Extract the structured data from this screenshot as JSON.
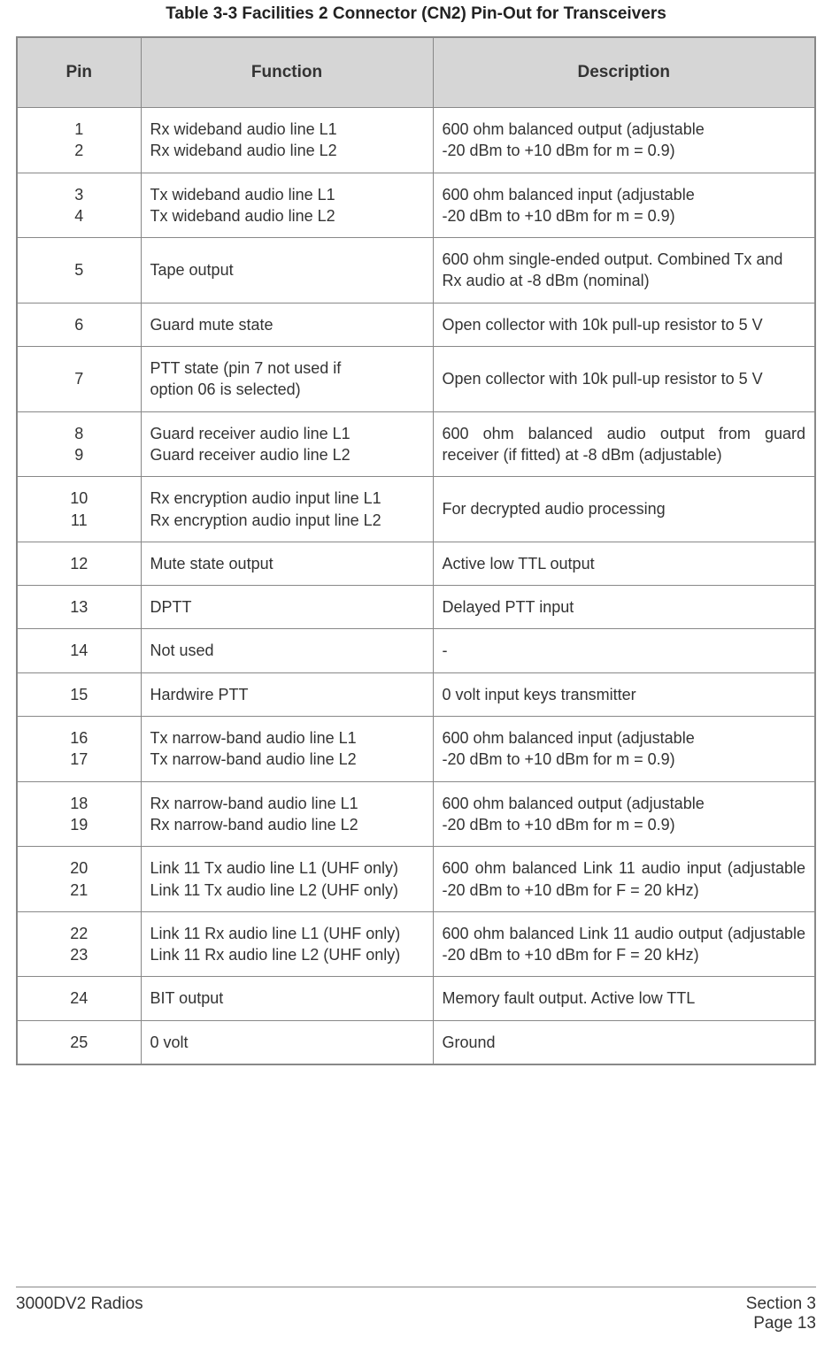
{
  "title": "Table 3-3  Facilities 2 Connector (CN2) Pin-Out for Transceivers",
  "columns": {
    "pin": "Pin",
    "function": "Function",
    "description": "Description"
  },
  "colors": {
    "header_bg": "#d6d6d6",
    "border": "#888888",
    "text": "#333333",
    "page_bg": "#ffffff"
  },
  "rows": [
    {
      "pins": [
        "1",
        "2"
      ],
      "functions": [
        "Rx wideband audio line L1",
        "Rx wideband audio line L2"
      ],
      "descriptions": [
        "600 ohm balanced output (adjustable",
        "-20 dBm to +10 dBm for m = 0.9)"
      ],
      "desc_justify": false
    },
    {
      "pins": [
        "3",
        "4"
      ],
      "functions": [
        "Tx wideband audio line L1",
        "Tx wideband audio line L2"
      ],
      "descriptions": [
        "600 ohm balanced input (adjustable",
        "-20 dBm to +10 dBm for m = 0.9)"
      ],
      "desc_justify": false
    },
    {
      "pins": [
        "5"
      ],
      "functions": [
        "Tape output"
      ],
      "descriptions": [
        "600 ohm single-ended output. Combined Tx and Rx audio at -8 dBm (nominal)"
      ],
      "desc_justify": false
    },
    {
      "pins": [
        "6"
      ],
      "functions": [
        "Guard mute state"
      ],
      "descriptions": [
        "Open collector with 10k pull-up resistor to 5 V"
      ],
      "desc_justify": false
    },
    {
      "pins": [
        "7"
      ],
      "functions": [
        "PTT state (pin 7 not used if",
        "option 06 is selected)"
      ],
      "descriptions": [
        "Open collector with 10k pull-up resistor to 5 V"
      ],
      "desc_justify": false
    },
    {
      "pins": [
        "8",
        "9"
      ],
      "functions": [
        "Guard receiver audio line L1",
        "Guard receiver audio line L2"
      ],
      "descriptions": [
        "600 ohm balanced audio output from guard receiver (if fitted) at -8 dBm (adjustable)"
      ],
      "desc_justify": true
    },
    {
      "pins": [
        "10",
        "11"
      ],
      "functions": [
        "Rx encryption audio input line L1",
        "Rx encryption audio input line L2"
      ],
      "descriptions": [
        "For decrypted audio processing"
      ],
      "desc_justify": false
    },
    {
      "pins": [
        "12"
      ],
      "functions": [
        "Mute state output"
      ],
      "descriptions": [
        "Active low TTL output"
      ],
      "desc_justify": false
    },
    {
      "pins": [
        "13"
      ],
      "functions": [
        "DPTT"
      ],
      "descriptions": [
        "Delayed PTT input"
      ],
      "desc_justify": false
    },
    {
      "pins": [
        "14"
      ],
      "functions": [
        "Not used"
      ],
      "descriptions": [
        "-"
      ],
      "desc_justify": false
    },
    {
      "pins": [
        "15"
      ],
      "functions": [
        "Hardwire PTT"
      ],
      "descriptions": [
        "0 volt input keys transmitter"
      ],
      "desc_justify": false
    },
    {
      "pins": [
        "16",
        "17"
      ],
      "functions": [
        "Tx narrow-band audio line L1",
        "Tx narrow-band audio line L2"
      ],
      "descriptions": [
        "600 ohm balanced input (adjustable",
        "-20 dBm to +10 dBm for m = 0.9)"
      ],
      "desc_justify": false
    },
    {
      "pins": [
        "18",
        "19"
      ],
      "functions": [
        "Rx narrow-band audio line L1",
        "Rx narrow-band audio line L2"
      ],
      "descriptions": [
        "600 ohm balanced output (adjustable",
        "-20 dBm to +10 dBm for m = 0.9)"
      ],
      "desc_justify": false
    },
    {
      "pins": [
        "20",
        "21"
      ],
      "functions": [
        "Link 11 Tx audio line L1 (UHF only)",
        "Link 11 Tx audio line L2 (UHF only)"
      ],
      "descriptions": [
        "600 ohm balanced Link 11 audio input (adjustable -20 dBm to +10 dBm for F = 20 kHz)"
      ],
      "desc_justify": true
    },
    {
      "pins": [
        "22",
        "23"
      ],
      "functions": [
        "Link 11 Rx audio line L1 (UHF only)",
        "Link 11 Rx audio line L2 (UHF only)"
      ],
      "descriptions": [
        "600 ohm balanced Link 11 audio output (adjustable -20 dBm to +10 dBm for F = 20 kHz)"
      ],
      "desc_justify": true
    },
    {
      "pins": [
        "24"
      ],
      "functions": [
        "BIT output"
      ],
      "descriptions": [
        "Memory fault output. Active low TTL"
      ],
      "desc_justify": false
    },
    {
      "pins": [
        "25"
      ],
      "functions": [
        "0 volt"
      ],
      "descriptions": [
        "Ground"
      ],
      "desc_justify": false
    }
  ],
  "footer": {
    "left": "3000DV2 Radios",
    "right1": "Section 3",
    "right2": "Page 13"
  }
}
